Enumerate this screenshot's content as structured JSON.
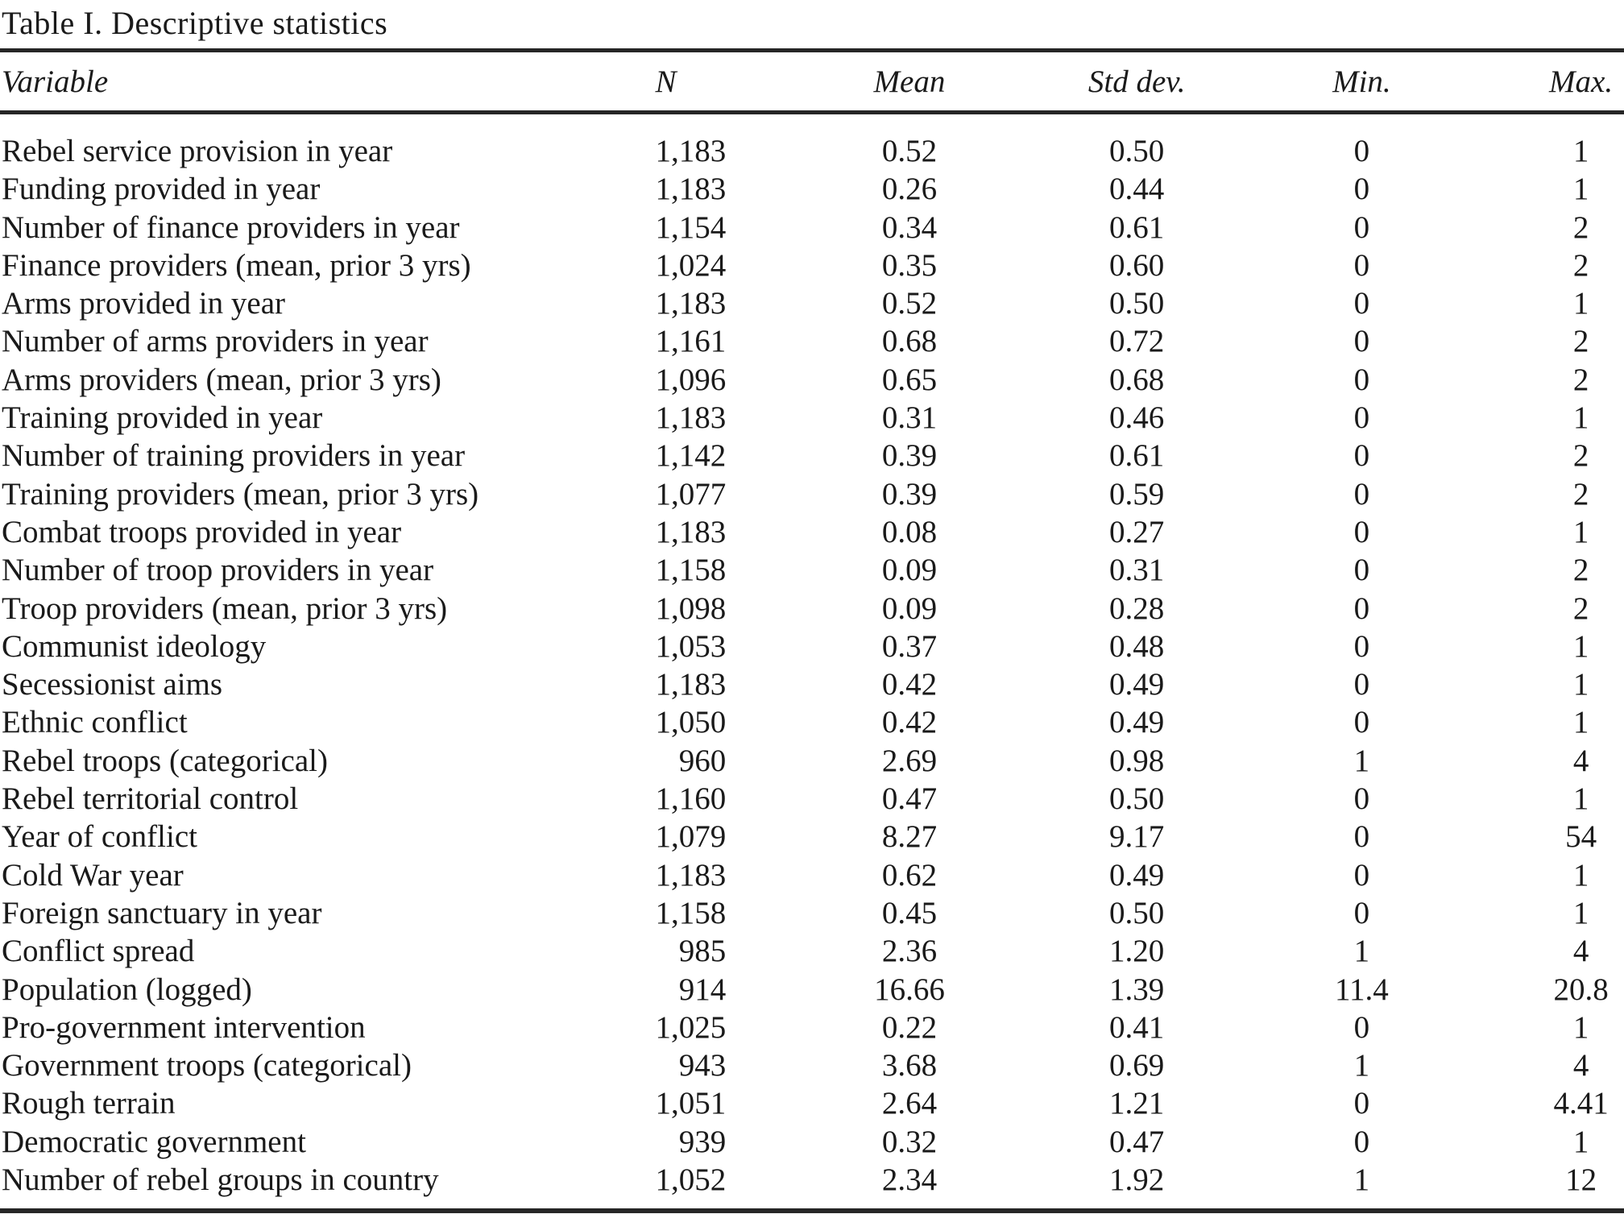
{
  "title": "Table I. Descriptive statistics",
  "table": {
    "columns": [
      {
        "key": "variable",
        "label": "Variable",
        "align": "left",
        "header_align": "left"
      },
      {
        "key": "n",
        "label": "N",
        "align": "right",
        "header_align": "center"
      },
      {
        "key": "mean",
        "label": "Mean",
        "align": "center",
        "header_align": "center"
      },
      {
        "key": "std-dev",
        "label": "Std dev.",
        "align": "center",
        "header_align": "center"
      },
      {
        "key": "min",
        "label": "Min.",
        "align": "center",
        "header_align": "center"
      },
      {
        "key": "max",
        "label": "Max.",
        "align": "center",
        "header_align": "center"
      }
    ],
    "rows": [
      [
        "Rebel service provision in year",
        "1,183",
        "0.52",
        "0.50",
        "0",
        "1"
      ],
      [
        "Funding provided in year",
        "1,183",
        "0.26",
        "0.44",
        "0",
        "1"
      ],
      [
        "Number of finance providers in year",
        "1,154",
        "0.34",
        "0.61",
        "0",
        "2"
      ],
      [
        "Finance providers (mean, prior 3 yrs)",
        "1,024",
        "0.35",
        "0.60",
        "0",
        "2"
      ],
      [
        "Arms provided in year",
        "1,183",
        "0.52",
        "0.50",
        "0",
        "1"
      ],
      [
        "Number of arms providers in year",
        "1,161",
        "0.68",
        "0.72",
        "0",
        "2"
      ],
      [
        "Arms providers (mean, prior 3 yrs)",
        "1,096",
        "0.65",
        "0.68",
        "0",
        "2"
      ],
      [
        "Training provided in year",
        "1,183",
        "0.31",
        "0.46",
        "0",
        "1"
      ],
      [
        "Number of training providers in year",
        "1,142",
        "0.39",
        "0.61",
        "0",
        "2"
      ],
      [
        "Training providers (mean, prior 3 yrs)",
        "1,077",
        "0.39",
        "0.59",
        "0",
        "2"
      ],
      [
        "Combat troops provided in year",
        "1,183",
        "0.08",
        "0.27",
        "0",
        "1"
      ],
      [
        "Number of troop providers in year",
        "1,158",
        "0.09",
        "0.31",
        "0",
        "2"
      ],
      [
        "Troop providers (mean, prior 3 yrs)",
        "1,098",
        "0.09",
        "0.28",
        "0",
        "2"
      ],
      [
        "Communist ideology",
        "1,053",
        "0.37",
        "0.48",
        "0",
        "1"
      ],
      [
        "Secessionist aims",
        "1,183",
        "0.42",
        "0.49",
        "0",
        "1"
      ],
      [
        "Ethnic conflict",
        "1,050",
        "0.42",
        "0.49",
        "0",
        "1"
      ],
      [
        "Rebel troops (categorical)",
        "960",
        "2.69",
        "0.98",
        "1",
        "4"
      ],
      [
        "Rebel territorial control",
        "1,160",
        "0.47",
        "0.50",
        "0",
        "1"
      ],
      [
        "Year of conflict",
        "1,079",
        "8.27",
        "9.17",
        "0",
        "54"
      ],
      [
        "Cold War year",
        "1,183",
        "0.62",
        "0.49",
        "0",
        "1"
      ],
      [
        "Foreign sanctuary in year",
        "1,158",
        "0.45",
        "0.50",
        "0",
        "1"
      ],
      [
        "Conflict spread",
        "985",
        "2.36",
        "1.20",
        "1",
        "4"
      ],
      [
        "Population (logged)",
        "914",
        "16.66",
        "1.39",
        "11.4",
        "20.8"
      ],
      [
        "Pro-government intervention",
        "1,025",
        "0.22",
        "0.41",
        "0",
        "1"
      ],
      [
        "Government troops (categorical)",
        "943",
        "3.68",
        "0.69",
        "1",
        "4"
      ],
      [
        "Rough terrain",
        "1,051",
        "2.64",
        "1.21",
        "0",
        "4.41"
      ],
      [
        "Democratic government",
        "939",
        "0.32",
        "0.47",
        "0",
        "1"
      ],
      [
        "Number of rebel groups in country",
        "1,052",
        "2.34",
        "1.92",
        "1",
        "12"
      ]
    ]
  }
}
